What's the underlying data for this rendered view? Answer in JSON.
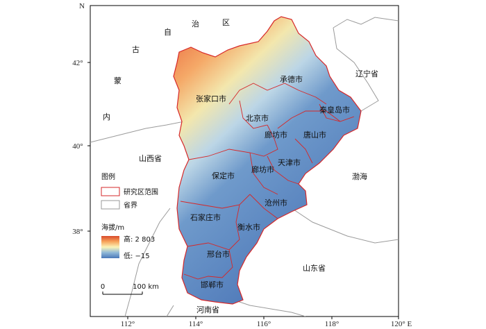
{
  "map": {
    "north_label": "N",
    "lat_ticks": [
      "42°",
      "40°",
      "38°"
    ],
    "lon_ticks": [
      "112°",
      "114°",
      "116°",
      "118°",
      "120° E"
    ],
    "cities": [
      "张家口市",
      "承德市",
      "北京市",
      "秦皇岛市",
      "廊坊市",
      "唐山市",
      "保定市",
      "廊坊市",
      "天津市",
      "沧州市",
      "石家庄市",
      "衡水市",
      "邢台市",
      "邯郸市"
    ],
    "regions": [
      "自",
      "治",
      "区",
      "古",
      "蒙",
      "内",
      "山西省",
      "辽宁省",
      "渤海",
      "山东省",
      "河南省"
    ]
  },
  "legend": {
    "title": "图例",
    "items": [
      "研究区范围",
      "省界"
    ],
    "elevation_title": "海拔/m",
    "high": "高: 2 803",
    "low": "低: −15",
    "colors": {
      "high": "#d73027",
      "mid": "#ffffbf",
      "low": "#4575b4",
      "boundary": "#d62728",
      "province": "#999999"
    }
  },
  "scale": {
    "zero": "0",
    "distance": "100 km"
  }
}
